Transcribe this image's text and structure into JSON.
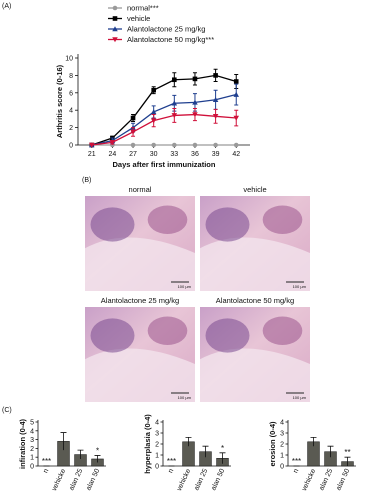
{
  "chart_data": [
    {
      "type": "line",
      "y_label": "Arthritis score (0-16)",
      "x_label": "Days after first immunization",
      "x": [
        21,
        24,
        27,
        30,
        33,
        36,
        39,
        42
      ],
      "xlim": [
        19,
        44
      ],
      "xticks": [
        21,
        24,
        27,
        30,
        33,
        36,
        39,
        42
      ],
      "ylim": [
        0,
        10
      ],
      "yticks": [
        0,
        2,
        4,
        6,
        8,
        10
      ],
      "series": [
        {
          "name": "normal***",
          "color": "#9a9a9a",
          "marker": "circle",
          "values": [
            0,
            0,
            0,
            0,
            0,
            0,
            0,
            0
          ]
        },
        {
          "name": "vehicle",
          "color": "#000000",
          "marker": "square",
          "values": [
            0,
            0.8,
            3.1,
            6.3,
            7.5,
            7.6,
            8.0,
            7.3
          ],
          "errors": [
            0,
            0.2,
            0.4,
            0.4,
            0.8,
            0.7,
            0.7,
            0.8
          ]
        },
        {
          "name": "Alantolactone 25 mg/kg",
          "color": "#1f3f8f",
          "marker": "triangle-up",
          "values": [
            0,
            0.5,
            2.0,
            3.8,
            4.8,
            4.9,
            5.2,
            5.8
          ],
          "errors": [
            0,
            0.3,
            0.5,
            0.7,
            0.9,
            1.0,
            1.1,
            1.2
          ]
        },
        {
          "name": "Alantolactone 50 mg/kg***",
          "color": "#d0103a",
          "marker": "triangle-down",
          "values": [
            0,
            0.3,
            1.5,
            2.8,
            3.4,
            3.5,
            3.3,
            3.1
          ],
          "errors": [
            0,
            0.2,
            0.5,
            0.7,
            0.8,
            0.7,
            0.8,
            0.9
          ]
        }
      ]
    },
    {
      "type": "bar",
      "y_label": "infiration (0-4)",
      "categories": [
        "n",
        "vehicke",
        "alan 25",
        "alan 50"
      ],
      "values": [
        0,
        2.8,
        1.3,
        0.8
      ],
      "errors": [
        0,
        1.0,
        0.5,
        0.4
      ],
      "significance": [
        "***",
        null,
        null,
        "*"
      ],
      "color": "#5a5a52",
      "ylim": [
        0,
        5
      ],
      "yticks": [
        0,
        1,
        2,
        3,
        4,
        5
      ]
    },
    {
      "type": "bar",
      "y_label": "hyperplasia (0-4)",
      "categories": [
        "n",
        "vehicke",
        "alan 25",
        "alan 50"
      ],
      "values": [
        0,
        2.2,
        1.3,
        0.7
      ],
      "errors": [
        0,
        0.4,
        0.5,
        0.5
      ],
      "significance": [
        "***",
        null,
        null,
        "*"
      ],
      "color": "#5a5a52",
      "ylim": [
        0,
        4
      ],
      "yticks": [
        0,
        1,
        2,
        3,
        4
      ]
    },
    {
      "type": "bar",
      "y_label": "erosion (0-4)",
      "categories": [
        "n",
        "vehicke",
        "alan 25",
        "alan 50"
      ],
      "values": [
        0,
        2.2,
        1.3,
        0.4
      ],
      "errors": [
        0,
        0.4,
        0.5,
        0.4
      ],
      "significance": [
        "***",
        null,
        null,
        "**"
      ],
      "color": "#5a5a52",
      "ylim": [
        0,
        4
      ],
      "yticks": [
        0,
        1,
        2,
        3,
        4
      ]
    }
  ],
  "figure": {
    "panel_labels": [
      "(A)",
      "(B)",
      "(C)"
    ],
    "histology": [
      {
        "title": "normal",
        "scale_bar": "100 µm"
      },
      {
        "title": "vehicle",
        "scale_bar": "100 µm"
      },
      {
        "title": "Alantolactone 25 mg/kg",
        "scale_bar": "100 µm"
      },
      {
        "title": "Alantolactone 50 mg/kg",
        "scale_bar": "100 µm"
      }
    ]
  }
}
